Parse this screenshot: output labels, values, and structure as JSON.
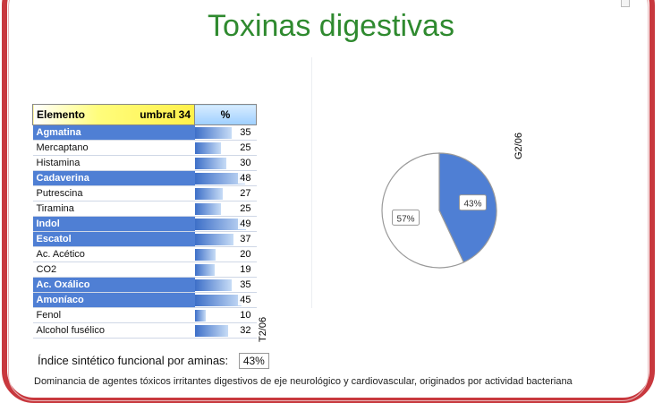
{
  "title": "Toxinas digestivas",
  "table": {
    "header": {
      "element": "Elemento",
      "threshold": "umbral 34",
      "percent": "%"
    },
    "rows": [
      {
        "name": "Agmatina",
        "value": "35",
        "highlight": true
      },
      {
        "name": "Mercaptano",
        "value": "25",
        "highlight": false
      },
      {
        "name": "Histamina",
        "value": "30",
        "highlight": false
      },
      {
        "name": "Cadaverina",
        "value": "48",
        "highlight": true
      },
      {
        "name": "Putrescina",
        "value": "27",
        "highlight": false
      },
      {
        "name": "Tiramina",
        "value": "25",
        "highlight": false
      },
      {
        "name": "Indol",
        "value": "49",
        "highlight": true
      },
      {
        "name": "Escatol",
        "value": "37",
        "highlight": true
      },
      {
        "name": "Ac. Acético",
        "value": "20",
        "highlight": false
      },
      {
        "name": "CO2",
        "value": "19",
        "highlight": false
      },
      {
        "name": "Ac. Oxálico",
        "value": "35",
        "highlight": true
      },
      {
        "name": "Amoníaco",
        "value": "45",
        "highlight": true
      },
      {
        "name": "Fenol",
        "value": "10",
        "highlight": false
      },
      {
        "name": "Alcohol fusélico",
        "value": "32",
        "highlight": false
      }
    ]
  },
  "table_label": "T2/06",
  "chart_label": "G2/06",
  "chart_data": {
    "type": "pie",
    "slices": [
      {
        "label": "43%",
        "value": 43,
        "color": "#4f7fd4"
      },
      {
        "label": "57%",
        "value": 57,
        "color": "#ffffff"
      }
    ]
  },
  "indice": {
    "label": "Índice sintético funcional por aminas:",
    "value": "43%"
  },
  "bottom_text": "Dominancia de agentes tóxicos irritantes digestivos de eje neurológico y cardiovascular, originados por actividad bacteriana",
  "colors": {
    "title": "#2f8a2f",
    "frame": "#c8383e",
    "highlight": "#4f7fd4"
  }
}
